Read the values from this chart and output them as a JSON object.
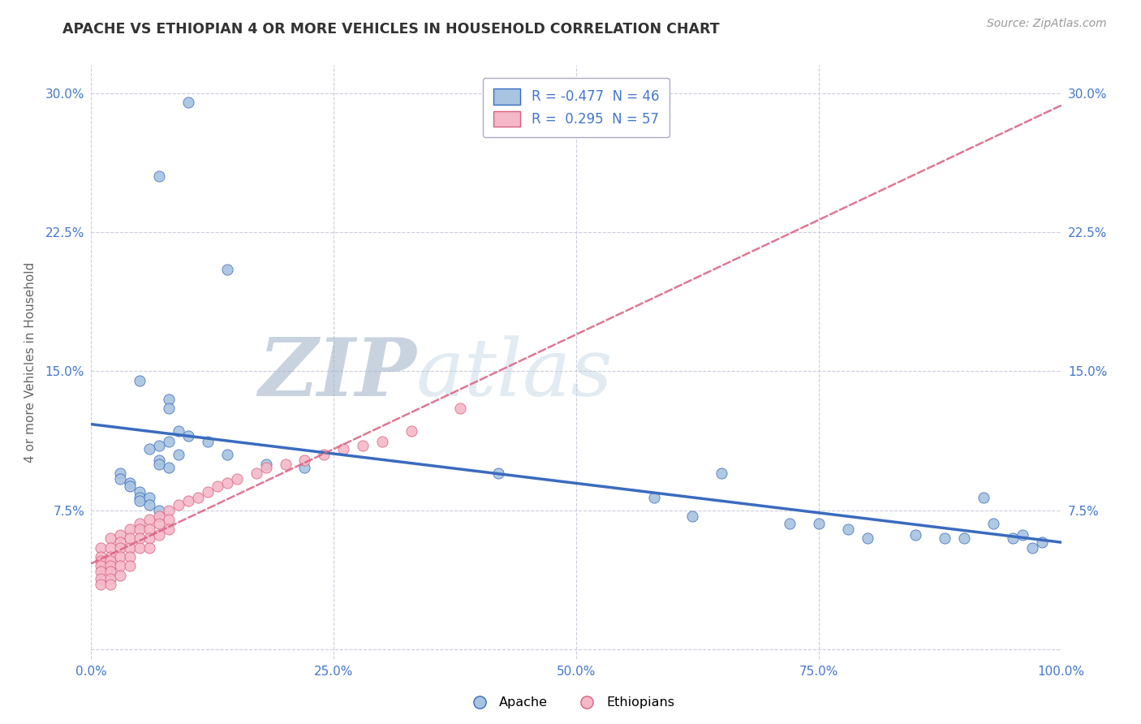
{
  "title": "APACHE VS ETHIOPIAN 4 OR MORE VEHICLES IN HOUSEHOLD CORRELATION CHART",
  "source": "Source: ZipAtlas.com",
  "ylabel": "4 or more Vehicles in Household",
  "xlim": [
    0.0,
    1.0
  ],
  "ylim": [
    -0.005,
    0.315
  ],
  "ytick_vals": [
    0.0,
    0.075,
    0.15,
    0.225,
    0.3
  ],
  "xtick_vals": [
    0.0,
    0.25,
    0.5,
    0.75,
    1.0
  ],
  "ytick_labels": [
    "",
    "7.5%",
    "15.0%",
    "22.5%",
    "30.0%"
  ],
  "xtick_labels": [
    "0.0%",
    "25.0%",
    "50.0%",
    "75.0%",
    "100.0%"
  ],
  "apache_color": "#a8c4e0",
  "ethiopian_color": "#f4b8c8",
  "apache_line_color": "#3a6bbf",
  "ethiopian_line_color": "#d96080",
  "apache_R": -0.477,
  "apache_N": 46,
  "ethiopian_R": 0.295,
  "ethiopian_N": 57,
  "background_color": "#ffffff",
  "grid_color": "#ccccdd",
  "tick_color": "#4477cc",
  "apache_scatter_x": [
    0.1,
    0.07,
    0.14,
    0.05,
    0.08,
    0.08,
    0.09,
    0.1,
    0.08,
    0.07,
    0.06,
    0.09,
    0.07,
    0.07,
    0.08,
    0.03,
    0.03,
    0.04,
    0.04,
    0.05,
    0.05,
    0.05,
    0.06,
    0.06,
    0.07,
    0.12,
    0.14,
    0.18,
    0.22,
    0.58,
    0.62,
    0.65,
    0.72,
    0.75,
    0.78,
    0.8,
    0.85,
    0.88,
    0.9,
    0.92,
    0.93,
    0.95,
    0.96,
    0.97,
    0.98,
    0.42
  ],
  "apache_scatter_y": [
    0.295,
    0.255,
    0.205,
    0.145,
    0.135,
    0.13,
    0.118,
    0.115,
    0.112,
    0.11,
    0.108,
    0.105,
    0.102,
    0.1,
    0.098,
    0.095,
    0.092,
    0.09,
    0.088,
    0.085,
    0.082,
    0.08,
    0.082,
    0.078,
    0.075,
    0.112,
    0.105,
    0.1,
    0.098,
    0.082,
    0.072,
    0.095,
    0.068,
    0.068,
    0.065,
    0.06,
    0.062,
    0.06,
    0.06,
    0.082,
    0.068,
    0.06,
    0.062,
    0.055,
    0.058,
    0.095
  ],
  "ethiopian_scatter_x": [
    0.01,
    0.01,
    0.01,
    0.01,
    0.01,
    0.01,
    0.01,
    0.02,
    0.02,
    0.02,
    0.02,
    0.02,
    0.02,
    0.02,
    0.02,
    0.03,
    0.03,
    0.03,
    0.03,
    0.03,
    0.03,
    0.04,
    0.04,
    0.04,
    0.04,
    0.04,
    0.05,
    0.05,
    0.05,
    0.05,
    0.06,
    0.06,
    0.06,
    0.06,
    0.07,
    0.07,
    0.07,
    0.08,
    0.08,
    0.08,
    0.09,
    0.1,
    0.11,
    0.12,
    0.13,
    0.14,
    0.15,
    0.17,
    0.18,
    0.2,
    0.22,
    0.24,
    0.26,
    0.28,
    0.3,
    0.33,
    0.38
  ],
  "ethiopian_scatter_y": [
    0.055,
    0.05,
    0.048,
    0.045,
    0.042,
    0.038,
    0.035,
    0.06,
    0.055,
    0.05,
    0.048,
    0.045,
    0.042,
    0.038,
    0.035,
    0.062,
    0.058,
    0.055,
    0.05,
    0.045,
    0.04,
    0.065,
    0.06,
    0.055,
    0.05,
    0.045,
    0.068,
    0.065,
    0.06,
    0.055,
    0.07,
    0.065,
    0.06,
    0.055,
    0.072,
    0.068,
    0.062,
    0.075,
    0.07,
    0.065,
    0.078,
    0.08,
    0.082,
    0.085,
    0.088,
    0.09,
    0.092,
    0.095,
    0.098,
    0.1,
    0.102,
    0.105,
    0.108,
    0.11,
    0.112,
    0.118,
    0.13
  ],
  "watermark_zip_color": "#9dafc8",
  "watermark_atlas_color": "#b8cfe0"
}
